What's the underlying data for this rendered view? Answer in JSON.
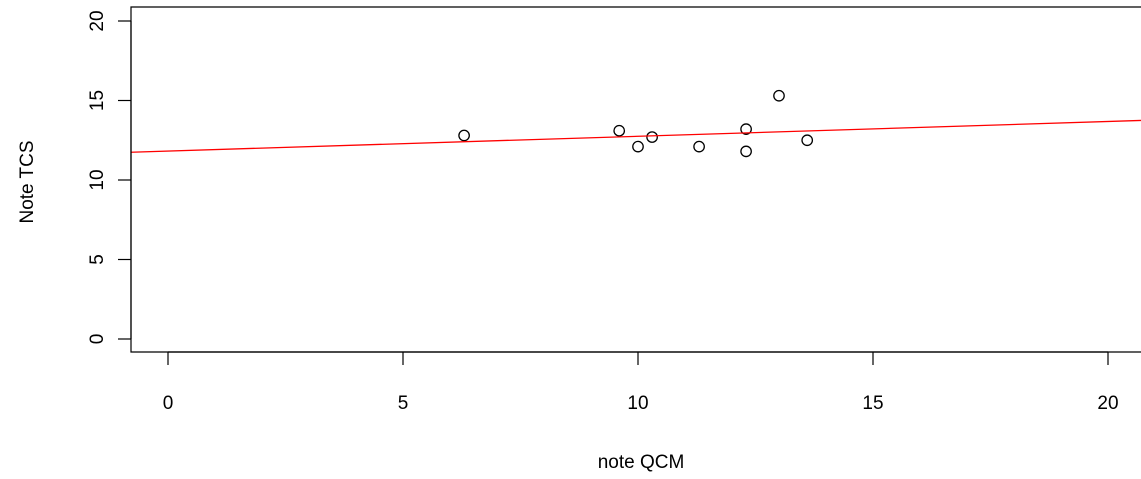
{
  "chart_data": {
    "type": "scatter",
    "title": "",
    "xlabel": "note QCM",
    "ylabel": "Note TCS",
    "xlim": [
      -0.8,
      20.6
    ],
    "ylim": [
      -0.8,
      20.6
    ],
    "x_ticks": [
      0,
      5,
      10,
      15,
      20
    ],
    "y_ticks": [
      0,
      5,
      10,
      15,
      20
    ],
    "grid": false,
    "points": [
      {
        "x": 6.3,
        "y": 12.8
      },
      {
        "x": 9.6,
        "y": 13.1
      },
      {
        "x": 10.0,
        "y": 12.1
      },
      {
        "x": 10.3,
        "y": 12.7
      },
      {
        "x": 11.3,
        "y": 12.1
      },
      {
        "x": 12.3,
        "y": 13.2
      },
      {
        "x": 12.3,
        "y": 11.8
      },
      {
        "x": 13.0,
        "y": 15.3
      },
      {
        "x": 13.6,
        "y": 12.5
      }
    ],
    "fit_line": {
      "intercept": 11.82,
      "slope": 0.093,
      "color": "#ff0000"
    },
    "point_color": "#000000"
  }
}
